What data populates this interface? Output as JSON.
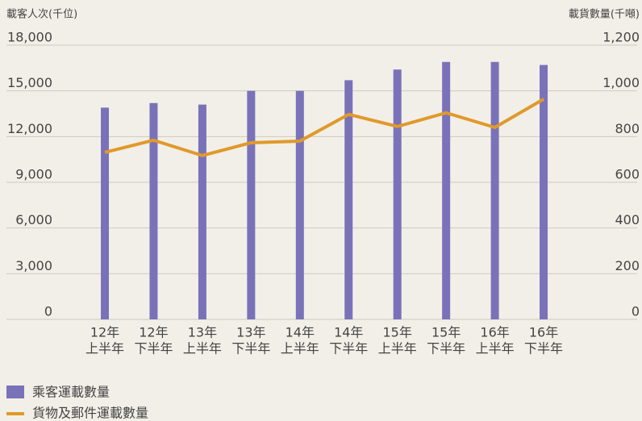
{
  "chart_data": {
    "type": "bar_line",
    "ylabel": "載客人次(千位)",
    "y2label": "載貨數量(千噸)",
    "categories": [
      [
        "12年",
        "上半年"
      ],
      [
        "12年",
        "下半年"
      ],
      [
        "13年",
        "上半年"
      ],
      [
        "13年",
        "下半年"
      ],
      [
        "14年",
        "上半年"
      ],
      [
        "14年",
        "下半年"
      ],
      [
        "15年",
        "上半年"
      ],
      [
        "15年",
        "下半年"
      ],
      [
        "16年",
        "上半年"
      ],
      [
        "16年",
        "下半年"
      ]
    ],
    "ylim": [
      0,
      18000
    ],
    "yticks": [
      0,
      {
        "value": 3000,
        "label": "3,000"
      },
      {
        "value": 6000,
        "label": "6,000"
      },
      {
        "value": 9000,
        "label": "9,000"
      },
      {
        "value": 12000,
        "label": "12,000"
      },
      {
        "value": 15000,
        "label": "15,000"
      },
      {
        "value": 18000,
        "label": "18,000"
      }
    ],
    "y2lim": [
      0,
      1200
    ],
    "y2ticks": [
      0,
      200,
      400,
      600,
      800,
      {
        "value": 1000,
        "label": "1,000"
      },
      {
        "value": 1200,
        "label": "1,200"
      }
    ],
    "grid": true,
    "series": [
      {
        "name": "乘客運載數量",
        "type": "bar",
        "color": "#7a72b8",
        "values": [
          13900,
          14200,
          14100,
          15000,
          15000,
          15700,
          16400,
          16900,
          16900,
          16700
        ]
      },
      {
        "name": "貨物及郵件運載數量",
        "type": "line",
        "axis": "y2",
        "color": "#e0992b",
        "values": [
          731,
          784,
          717,
          773,
          780,
          897,
          844,
          904,
          840,
          964
        ]
      }
    ]
  }
}
